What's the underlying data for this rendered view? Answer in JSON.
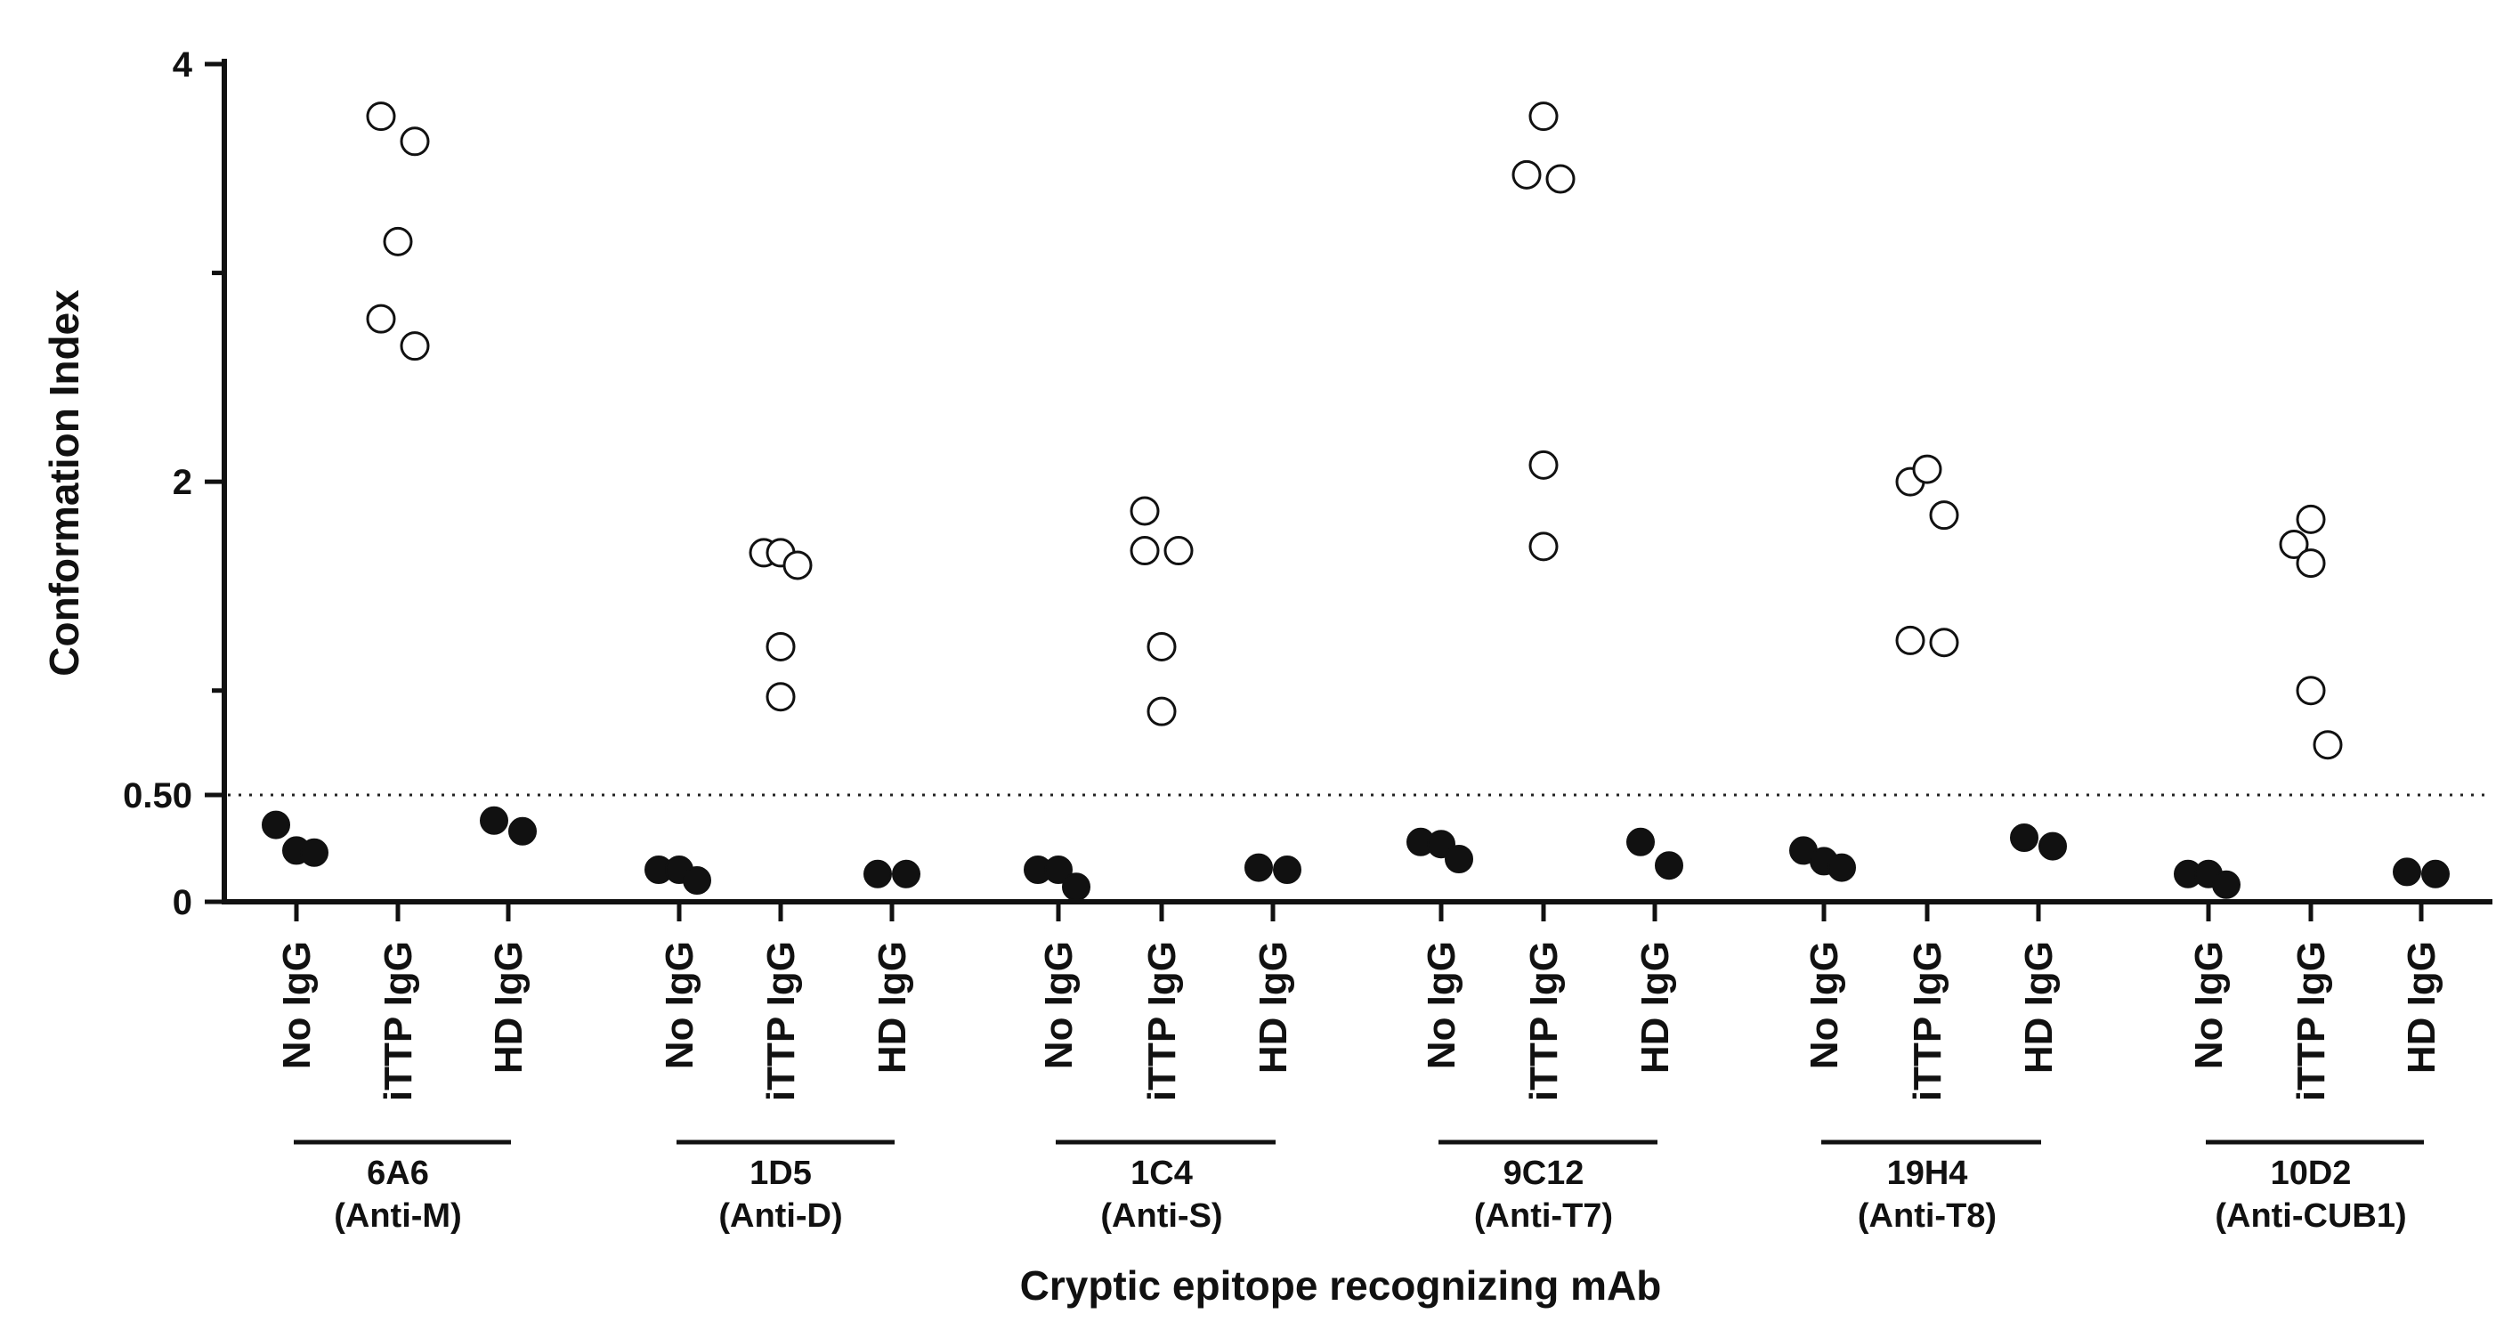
{
  "chart_data": {
    "type": "scatter",
    "title": "",
    "xlabel": "Cryptic epitope recognizing mAb",
    "ylabel": "Conformation Index",
    "y_scale": "piecewise: 0-0.50 compressed, 0.50-4 linear",
    "ylim": [
      0,
      4
    ],
    "y_ticks": [
      {
        "value": 0,
        "label": "0"
      },
      {
        "value": 0.5,
        "label": "0.50"
      },
      {
        "value": 2,
        "label": "2"
      },
      {
        "value": 4,
        "label": "4"
      }
    ],
    "threshold": {
      "value": 0.5,
      "style": "dotted"
    },
    "categories": [
      "No IgG",
      "iTTP IgG",
      "HD IgG"
    ],
    "groups": [
      {
        "name": "6A6",
        "sub": "(Anti-M)",
        "no_igg": [
          0.36,
          0.24,
          0.23
        ],
        "ittp_igg": [
          3.75,
          2.78,
          3.15,
          3.63,
          2.65
        ],
        "hd_igg": [
          0.38,
          0.33
        ]
      },
      {
        "name": "1D5",
        "sub": "(Anti-D)",
        "no_igg": [
          0.15,
          0.15,
          0.1
        ],
        "ittp_igg": [
          1.66,
          1.66,
          1.21,
          0.97,
          1.6
        ],
        "hd_igg": [
          0.13,
          0.13
        ]
      },
      {
        "name": "1C4",
        "sub": "(Anti-S)",
        "no_igg": [
          0.15,
          0.15,
          0.07
        ],
        "ittp_igg": [
          1.86,
          1.67,
          1.21,
          0.9,
          1.67
        ],
        "hd_igg": [
          0.16,
          0.15
        ]
      },
      {
        "name": "9C12",
        "sub": "(Anti-T7)",
        "no_igg": [
          0.28,
          0.27,
          0.2
        ],
        "ittp_igg": [
          3.47,
          3.75,
          2.08,
          1.69,
          3.45
        ],
        "hd_igg": [
          0.28,
          0.17
        ]
      },
      {
        "name": "19H4",
        "sub": "(Anti-T8)",
        "no_igg": [
          0.24,
          0.19,
          0.16
        ],
        "ittp_igg": [
          2.0,
          2.06,
          1.84,
          1.24,
          1.23
        ],
        "hd_igg": [
          0.3,
          0.26
        ]
      },
      {
        "name": "10D2",
        "sub": "(Anti-CUB1)",
        "no_igg": [
          0.13,
          0.13,
          0.08
        ],
        "ittp_igg": [
          1.7,
          1.82,
          1.61,
          1.0,
          0.74
        ],
        "hd_igg": [
          0.14,
          0.13
        ]
      }
    ],
    "markers": {
      "no_igg": "filled",
      "ittp_igg": "open",
      "hd_igg": "filled"
    },
    "grid": false,
    "legend": "none"
  }
}
